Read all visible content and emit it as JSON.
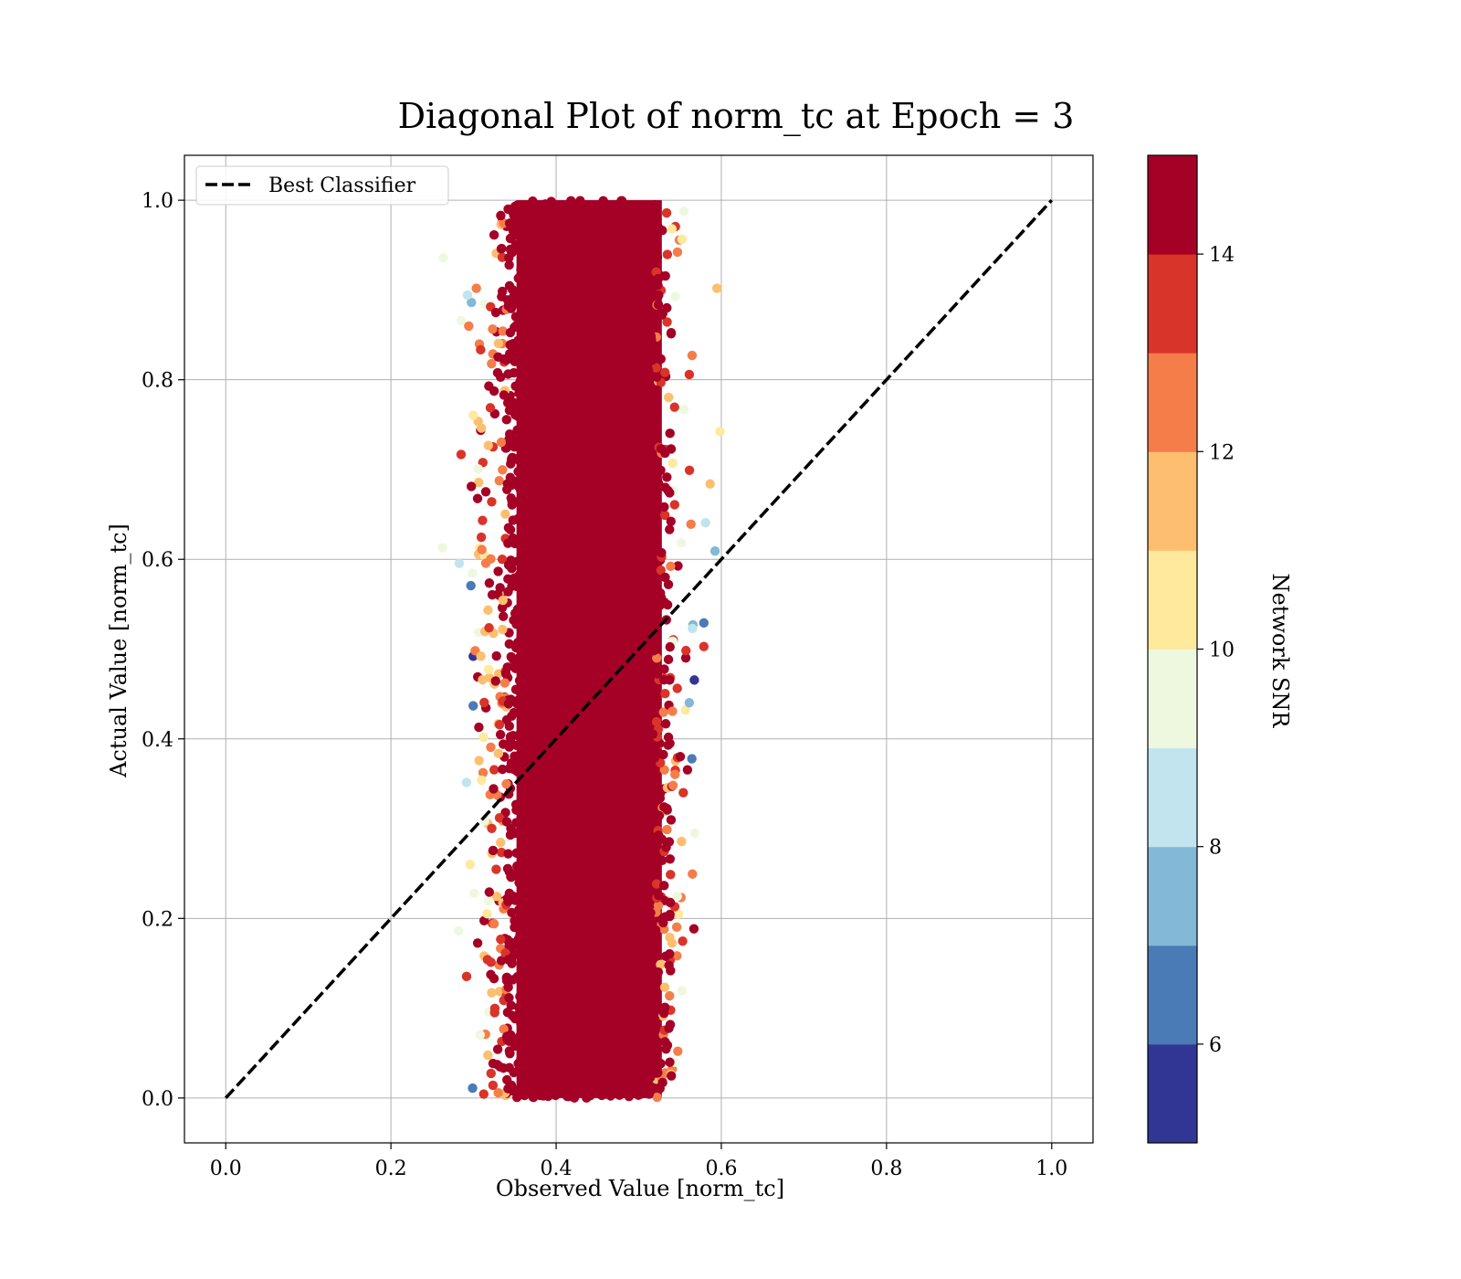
{
  "chart_data": {
    "type": "scatter",
    "title": "Diagonal Plot of norm_tc at Epoch = 3",
    "xlabel": "Observed Value [norm_tc]",
    "ylabel": "Actual Value [norm_tc]",
    "xlim": [
      -0.05,
      1.05
    ],
    "ylim": [
      -0.05,
      1.05
    ],
    "xticks": [
      "0.0",
      "0.2",
      "0.4",
      "0.6",
      "0.8",
      "1.0"
    ],
    "yticks": [
      "0.0",
      "0.2",
      "0.4",
      "0.6",
      "0.8",
      "1.0"
    ],
    "grid": true,
    "legend": {
      "placement": "upper-left",
      "entries": [
        "Best Classifier"
      ]
    },
    "reference_line": {
      "name": "Best Classifier",
      "style": "dashed",
      "color": "#000000",
      "x": [
        0.0,
        1.0
      ],
      "y": [
        0.0,
        1.0
      ]
    },
    "scatter_cloud": {
      "y_range": [
        0.0,
        1.0
      ],
      "x_center": 0.43,
      "core_x_range": [
        0.34,
        0.54
      ],
      "outer_x_range": [
        0.26,
        0.62
      ],
      "dominant_color": "#a50026"
    },
    "colorbar": {
      "label": "Network SNR",
      "range": [
        5,
        15
      ],
      "ticks": [
        "6",
        "8",
        "10",
        "12",
        "14"
      ],
      "bins": [
        {
          "from": 5,
          "to": 6,
          "color": "#313695"
        },
        {
          "from": 6,
          "to": 7,
          "color": "#4a7bb7"
        },
        {
          "from": 7,
          "to": 8,
          "color": "#83b8d7"
        },
        {
          "from": 8,
          "to": 9,
          "color": "#c1e4ef"
        },
        {
          "from": 9,
          "to": 10,
          "color": "#eef8df"
        },
        {
          "from": 10,
          "to": 11,
          "color": "#fee99d"
        },
        {
          "from": 11,
          "to": 12,
          "color": "#fdbf6f"
        },
        {
          "from": 12,
          "to": 13,
          "color": "#f57d4a"
        },
        {
          "from": 13,
          "to": 14,
          "color": "#d93429"
        },
        {
          "from": 14,
          "to": 15,
          "color": "#a50026"
        }
      ]
    }
  }
}
